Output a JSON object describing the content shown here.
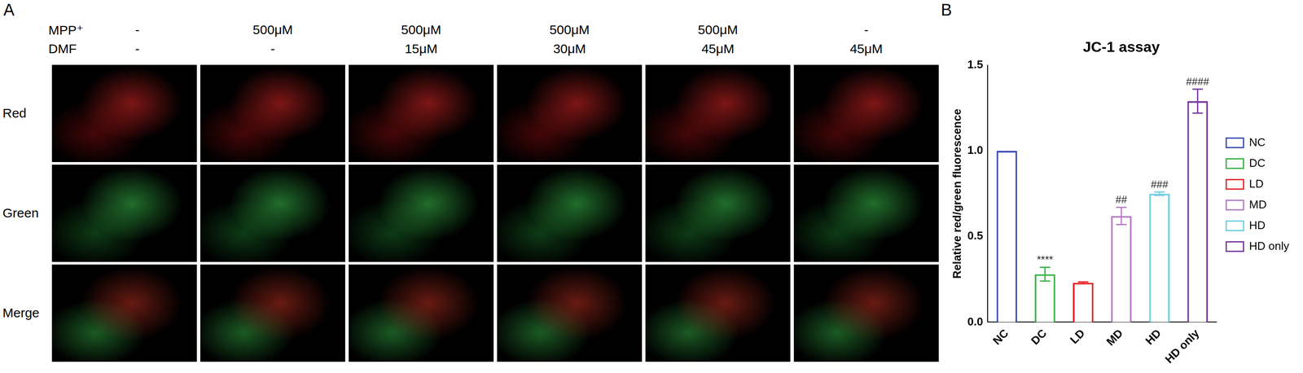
{
  "panel_a": {
    "letter": "A",
    "condition_labels": [
      "MPP⁺",
      "DMF"
    ],
    "columns": [
      [
        "-",
        "-"
      ],
      [
        "500μM",
        "-"
      ],
      [
        "500μM",
        "15μM"
      ],
      [
        "500μM",
        "30μM"
      ],
      [
        "500μM",
        "45μM"
      ],
      [
        "-",
        "45μM"
      ]
    ],
    "rows": [
      "Red",
      "Green",
      "Merge"
    ]
  },
  "chart_data": {
    "panel": "B",
    "type": "bar",
    "title": "JC-1 assay",
    "y_label": "Relative red/green fluorescence",
    "categories": [
      "NC",
      "DC",
      "LD",
      "MD",
      "HD",
      "HD only"
    ],
    "values": [
      1.0,
      0.28,
      0.23,
      0.62,
      0.75,
      1.29
    ],
    "errors": [
      0,
      0.04,
      0.005,
      0.05,
      0.01,
      0.07
    ],
    "colors": [
      "#3f51b5",
      "#3cb54a",
      "#e8282b",
      "#b77cc7",
      "#6fd0e3",
      "#7a3d9e"
    ],
    "annotations": [
      {
        "category": "DC",
        "text": "****"
      },
      {
        "category": "MD",
        "text": "##"
      },
      {
        "category": "HD",
        "text": "###"
      },
      {
        "category": "HD only",
        "text": "####"
      }
    ],
    "ylim": [
      0,
      1.5
    ],
    "yticks": [
      {
        "value": 0,
        "label": "0.0"
      },
      {
        "value": 0.5,
        "label": "0.5"
      },
      {
        "value": 1.0,
        "label": "1.0"
      },
      {
        "value": 1.5,
        "label": "1.5"
      }
    ],
    "grid": false,
    "legend": "right"
  }
}
